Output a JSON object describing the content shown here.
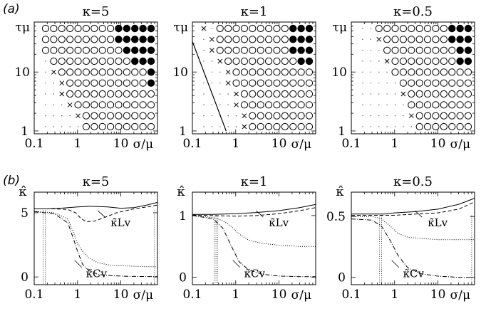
{
  "panel_labels": {
    "a": "(a)",
    "b": "(b)"
  },
  "legend_symbols": {
    "filled": "●",
    "open": "○",
    "cross": "×",
    "dot": "·"
  },
  "chart_data": [
    {
      "type": "scatter",
      "title": "κ=5",
      "xlabel": "σ/μ",
      "ylabel": "τμ",
      "x_scale": "log",
      "y_scale": "log",
      "x_ticks": [
        "0.1",
        "1",
        "10"
      ],
      "y_ticks": [
        "1",
        "10"
      ],
      "x_grid": [
        0.16,
        0.25,
        0.4,
        0.63,
        1.0,
        1.6,
        2.5,
        4.0,
        6.3,
        10,
        16,
        25,
        40,
        63
      ],
      "y_grid": [
        1.0,
        1.6,
        2.5,
        4.0,
        6.3,
        10,
        16,
        25,
        40,
        63
      ],
      "cells": [
        ".....OOOOOOOOO",
        "....XOOOOOOOOO",
        "...XOOOOOOOOOO",
        "..XOOOOOOOOOOO",
        "..XOOOOOOOOOOF",
        ".XOOOOOOOOOOOF",
        ".OOOOOOOOOOFFF",
        "OOOOOOOOOOFFFF",
        "OOOOOOOOOFFFFF",
        "OOOOOOOOOFFFFF"
      ],
      "cell_legend": {
        "F": "filled circle",
        "O": "open circle",
        "X": "cross",
        ".": "dot"
      },
      "line": []
    },
    {
      "type": "scatter",
      "title": "κ=1",
      "xlabel": "σ/μ",
      "ylabel": "τμ",
      "x_scale": "log",
      "y_scale": "log",
      "x_ticks": [
        "0.1",
        "1",
        "10"
      ],
      "y_ticks": [
        "1",
        "10"
      ],
      "x_grid": [
        0.16,
        0.25,
        0.4,
        0.63,
        1.0,
        1.6,
        2.5,
        4.0,
        6.3,
        10,
        16,
        25,
        40,
        63
      ],
      "y_grid": [
        1.0,
        1.6,
        2.5,
        4.0,
        6.3,
        10,
        16,
        25,
        40,
        63
      ],
      "cells": [
        ".....XOOOOOOOO",
        ".....XOOOOOOOO",
        "....XOOOOOOOOO",
        "....XOOOOOOOOO",
        "...XOOOOOOOOOO",
        "...XOOOOOOOOOO",
        "..XOOOOOOOOOFF",
        ".XOOOOOOOOOFFF",
        ".XOOOOOOOOOFFF",
        "X.OOOOOOOOOFFF"
      ],
      "cell_legend": {
        "F": "filled circle",
        "O": "open circle",
        "X": "cross",
        ".": "dot"
      },
      "line": [
        [
          0.1,
          33
        ],
        [
          0.6,
          1
        ]
      ]
    },
    {
      "type": "scatter",
      "title": "κ=0.5",
      "xlabel": "σ/μ",
      "ylabel": "τμ",
      "x_scale": "log",
      "y_scale": "log",
      "x_ticks": [
        "0.1",
        "1",
        "10"
      ],
      "y_ticks": [
        "1",
        "10"
      ],
      "x_grid": [
        0.16,
        0.25,
        0.4,
        0.63,
        1.0,
        1.6,
        2.5,
        4.0,
        6.3,
        10,
        16,
        25,
        40,
        63
      ],
      "y_grid": [
        1.0,
        1.6,
        2.5,
        4.0,
        6.3,
        10,
        16,
        25,
        40,
        63
      ],
      "cells": [
        ".......OOOOOOO",
        "......XOOOOOOO",
        "......OOOOOOOO",
        ".....XOOOOOOOO",
        ".....OOOOOOOOO",
        "....OOOOOOOOOO",
        "...XOOOOOOOOFF",
        "...OOOOOOOOOFF",
        "..XOOOOOOOOFFF",
        "..OOOOOOOOOFFF"
      ],
      "cell_legend": {
        "F": "filled circle",
        "O": "open circle",
        "X": "cross",
        ".": "dot"
      },
      "line": []
    },
    {
      "type": "line",
      "title": "κ=5",
      "xlabel": "σ/μ",
      "ylabel": "κ̂",
      "x_scale": "log",
      "xlim": [
        0.1,
        70
      ],
      "ylim": [
        -0.6,
        6.6
      ],
      "x_ticks": [
        "0.1",
        "1",
        "10"
      ],
      "y_ticks": [
        "0",
        "5"
      ],
      "annotations": [
        "κ̃Lv",
        "κ̃Cv"
      ],
      "vlines": [
        0.16,
        0.18,
        60
      ],
      "series": [
        {
          "style": "solid",
          "x": [
            0.1,
            0.2,
            0.4,
            1,
            2,
            5,
            10,
            20,
            40,
            70
          ],
          "y": [
            5.3,
            5.3,
            5.35,
            5.45,
            5.5,
            5.45,
            5.35,
            5.4,
            5.6,
            5.8
          ]
        },
        {
          "style": "dashed",
          "x": [
            0.1,
            0.3,
            0.6,
            0.9,
            1.2,
            1.6,
            2.5,
            4,
            8,
            20,
            50,
            70
          ],
          "y": [
            5.3,
            5.3,
            5.25,
            5.0,
            4.55,
            4.3,
            4.35,
            4.6,
            5.0,
            5.3,
            5.5,
            5.6
          ]
        },
        {
          "style": "dotted",
          "x": [
            0.1,
            0.3,
            0.6,
            0.8,
            1,
            1.3,
            1.8,
            3,
            6,
            15,
            40,
            70
          ],
          "y": [
            5.1,
            5.0,
            4.5,
            3.5,
            2.6,
            2.0,
            1.5,
            1.1,
            0.9,
            0.85,
            0.8,
            0.8
          ]
        },
        {
          "style": "dashdot",
          "x": [
            0.1,
            0.3,
            0.6,
            0.8,
            1,
            1.3,
            1.8,
            3,
            6,
            15,
            40,
            70
          ],
          "y": [
            5.1,
            4.9,
            4.2,
            3.0,
            2.0,
            1.0,
            0.5,
            0.2,
            0.1,
            0.05,
            0.03,
            0.03
          ]
        }
      ]
    },
    {
      "type": "line",
      "title": "κ=1",
      "xlabel": "σ/μ",
      "ylabel": "κ̂",
      "x_scale": "log",
      "xlim": [
        0.1,
        70
      ],
      "ylim": [
        -0.12,
        1.38
      ],
      "x_ticks": [
        "0.1",
        "1",
        "10"
      ],
      "y_ticks": [
        "0",
        "1"
      ],
      "annotations": [
        "κ̃Lv",
        "κ̃Cv"
      ],
      "vlines": [
        0.32,
        0.35,
        0.38
      ],
      "series": [
        {
          "style": "solid",
          "x": [
            0.1,
            0.3,
            1,
            3,
            10,
            30,
            70
          ],
          "y": [
            1.02,
            1.02,
            1.03,
            1.05,
            1.08,
            1.13,
            1.18
          ]
        },
        {
          "style": "dashed",
          "x": [
            0.1,
            0.3,
            1,
            3,
            10,
            30,
            70
          ],
          "y": [
            1.01,
            1.0,
            0.99,
            1.0,
            1.03,
            1.08,
            1.13
          ]
        },
        {
          "style": "dotted",
          "x": [
            0.1,
            0.3,
            0.5,
            0.8,
            1.2,
            2,
            4,
            10,
            30,
            70
          ],
          "y": [
            1.0,
            0.97,
            0.92,
            0.82,
            0.7,
            0.6,
            0.55,
            0.52,
            0.5,
            0.5
          ]
        },
        {
          "style": "dashdot",
          "x": [
            0.1,
            0.3,
            0.5,
            0.8,
            1.2,
            2,
            4,
            10,
            30,
            70
          ],
          "y": [
            1.0,
            0.95,
            0.8,
            0.5,
            0.25,
            0.12,
            0.05,
            0.02,
            0.01,
            0.01
          ]
        }
      ]
    },
    {
      "type": "line",
      "title": "κ=0.5",
      "xlabel": "σ/μ",
      "ylabel": "κ̂",
      "x_scale": "log",
      "xlim": [
        0.1,
        70
      ],
      "ylim": [
        -0.06,
        0.7
      ],
      "x_ticks": [
        "0.1",
        "1",
        "10"
      ],
      "y_ticks": [
        "0",
        "0.5"
      ],
      "annotations": [
        "κ̃Lv",
        "κ̃Cv"
      ],
      "vlines": [
        0.45,
        0.5,
        60
      ],
      "series": [
        {
          "style": "solid",
          "x": [
            0.1,
            0.3,
            0.6,
            1,
            3,
            10,
            30,
            70
          ],
          "y": [
            0.52,
            0.52,
            0.52,
            0.53,
            0.54,
            0.56,
            0.6,
            0.65
          ]
        },
        {
          "style": "dashed",
          "x": [
            0.1,
            0.3,
            0.6,
            1,
            3,
            10,
            30,
            70
          ],
          "y": [
            0.51,
            0.51,
            0.51,
            0.51,
            0.52,
            0.53,
            0.56,
            0.62
          ]
        },
        {
          "style": "dotted",
          "x": [
            0.1,
            0.3,
            0.5,
            0.8,
            1.2,
            2,
            4,
            10,
            30,
            70
          ],
          "y": [
            0.5,
            0.5,
            0.48,
            0.42,
            0.36,
            0.33,
            0.32,
            0.31,
            0.31,
            0.31
          ]
        },
        {
          "style": "dashdot",
          "x": [
            0.1,
            0.3,
            0.5,
            0.8,
            1.2,
            2,
            4,
            10,
            30,
            70
          ],
          "y": [
            0.48,
            0.47,
            0.42,
            0.3,
            0.18,
            0.08,
            0.03,
            0.01,
            0.0,
            0.0
          ]
        }
      ]
    }
  ]
}
